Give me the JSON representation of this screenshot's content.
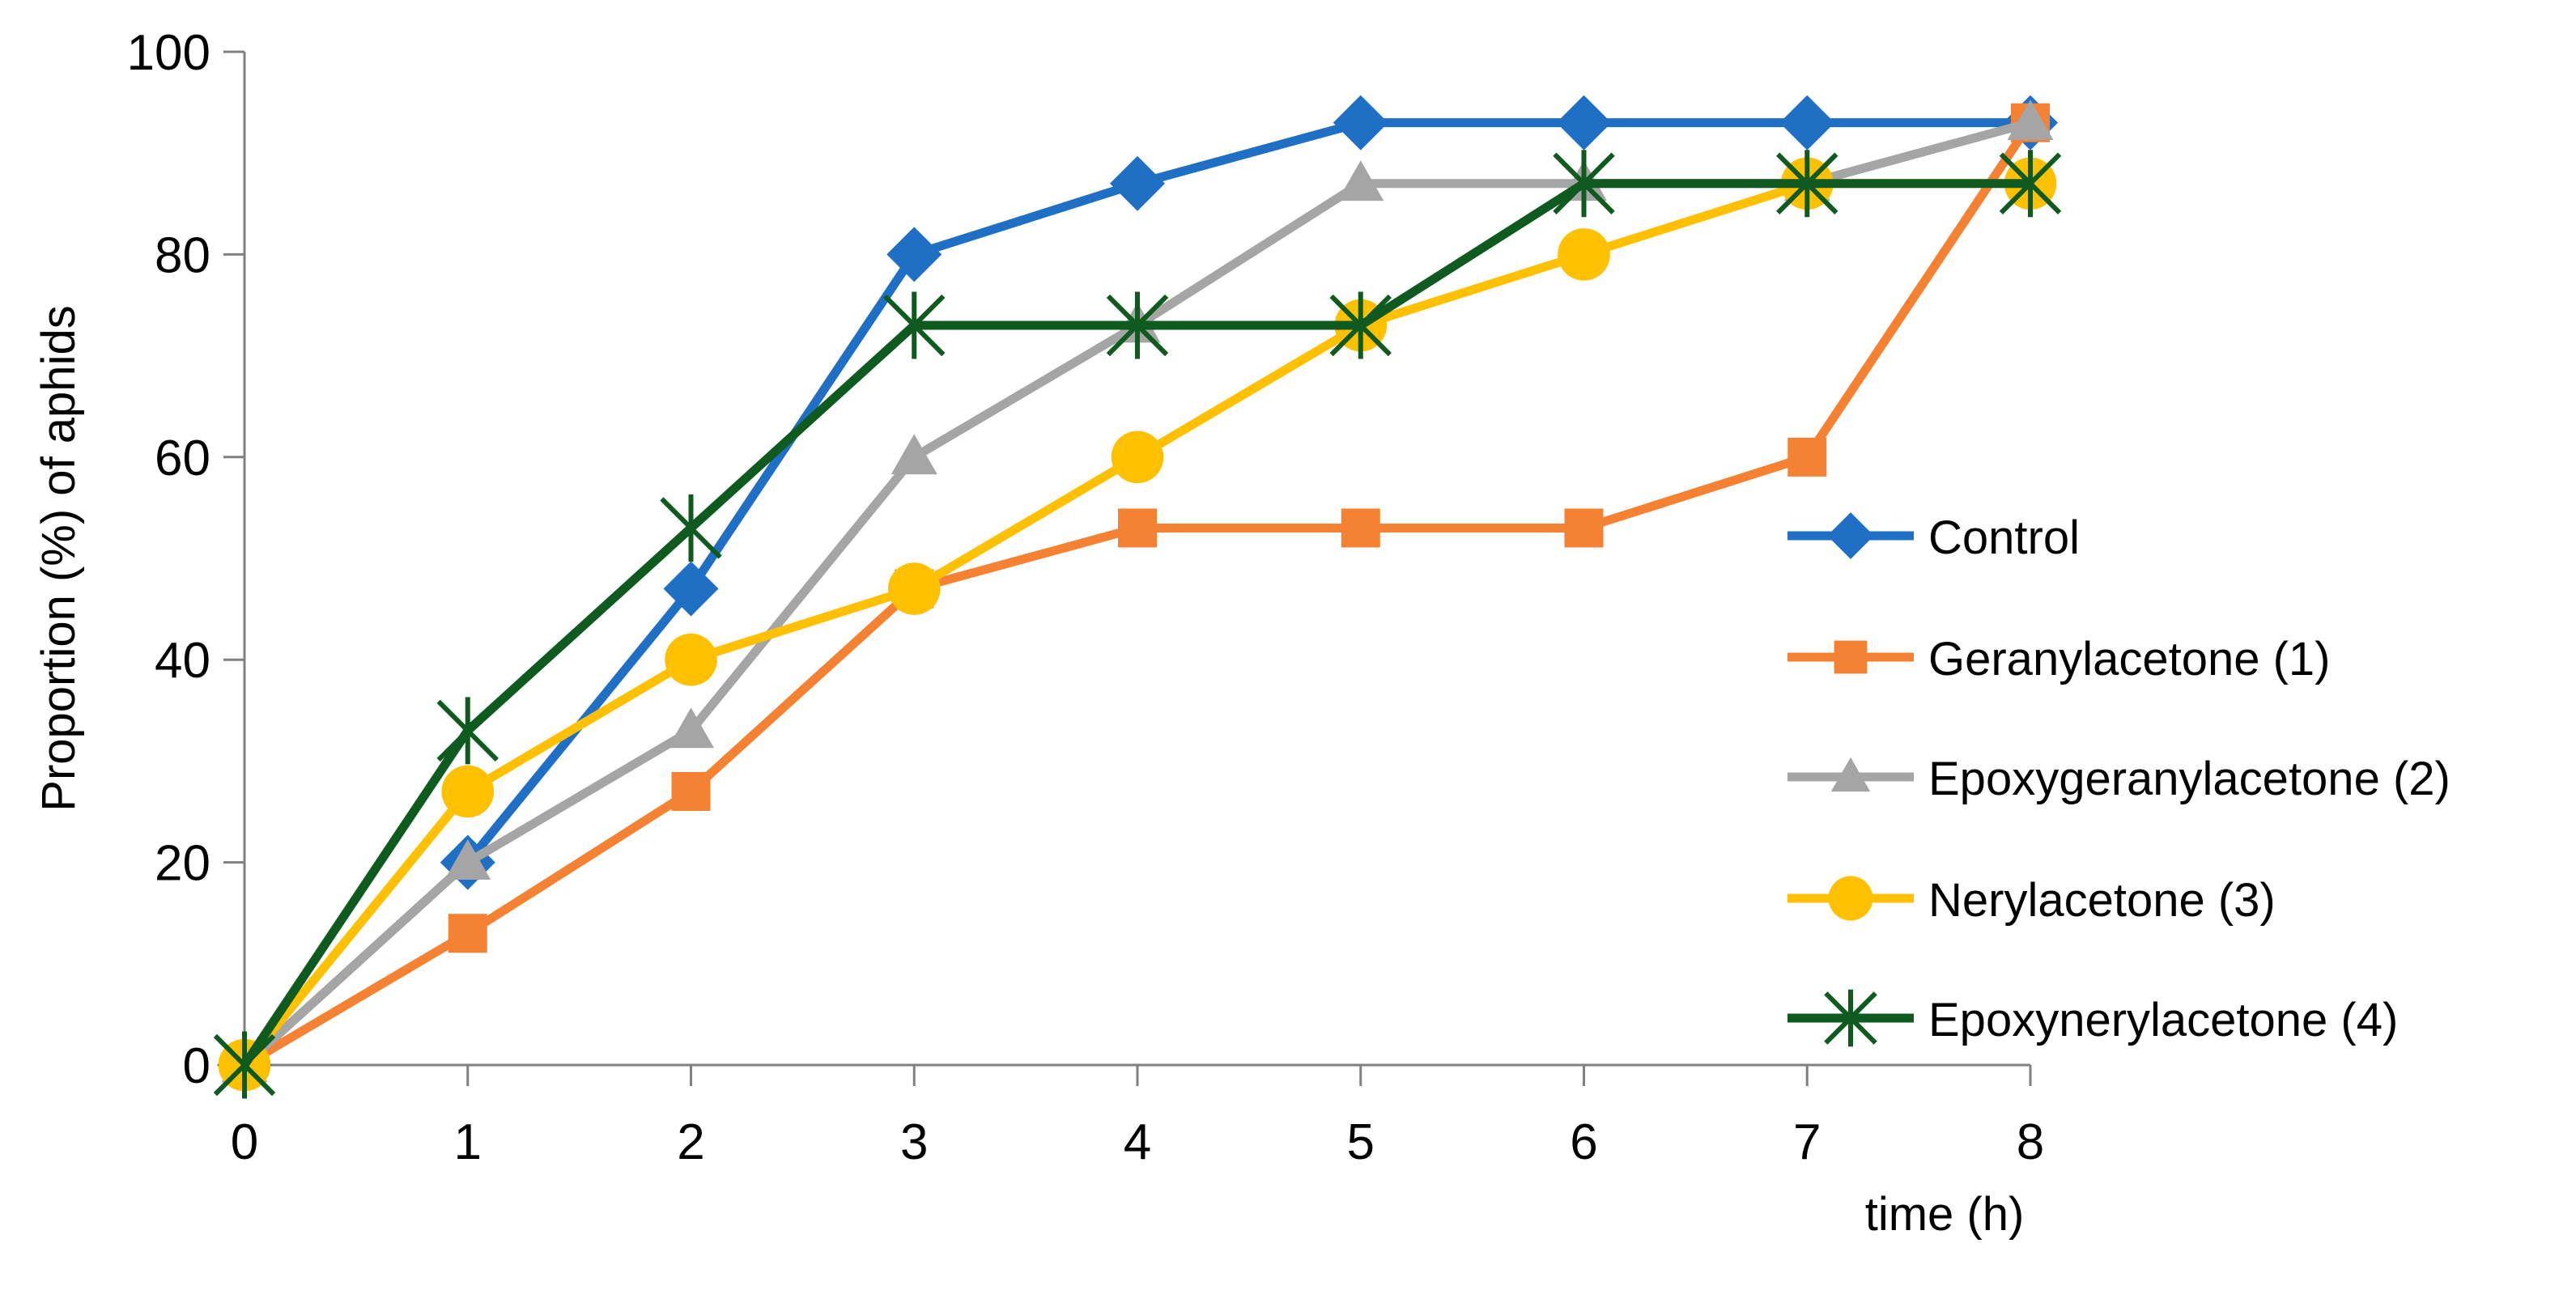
{
  "chart_data": {
    "type": "line",
    "title": "",
    "xlabel": "time (h)",
    "ylabel": "Proportion (%) of aphids",
    "x": [
      0,
      1,
      2,
      3,
      4,
      5,
      6,
      7,
      8
    ],
    "xlim": [
      0,
      8
    ],
    "ylim": [
      0,
      100
    ],
    "yticks": [
      0,
      20,
      40,
      60,
      80,
      100
    ],
    "xticks": [
      0,
      1,
      2,
      3,
      4,
      5,
      6,
      7,
      8
    ],
    "grid": false,
    "legend_position": "right",
    "series": [
      {
        "name": "Control",
        "color": "#1F6FC5",
        "marker": "diamond",
        "values": [
          0,
          20,
          47,
          80,
          87,
          93,
          93,
          93,
          93
        ]
      },
      {
        "name": "Geranylacetone (1)",
        "color": "#F58232",
        "marker": "square",
        "values": [
          0,
          13,
          27,
          47,
          53,
          53,
          53,
          60,
          93
        ]
      },
      {
        "name": "Epoxygeranylacetone (2)",
        "color": "#A5A5A5",
        "marker": "triangle",
        "values": [
          0,
          20,
          33,
          60,
          73,
          87,
          87,
          87,
          93
        ]
      },
      {
        "name": "Nerylacetone (3)",
        "color": "#FFC000",
        "marker": "circle",
        "values": [
          0,
          27,
          40,
          47,
          60,
          73,
          80,
          87,
          87
        ]
      },
      {
        "name": "Epoxynerylacetone (4)",
        "color": "#0F5B1F",
        "marker": "star",
        "values": [
          0,
          33,
          53,
          73,
          73,
          73,
          87,
          87,
          87
        ]
      }
    ]
  }
}
